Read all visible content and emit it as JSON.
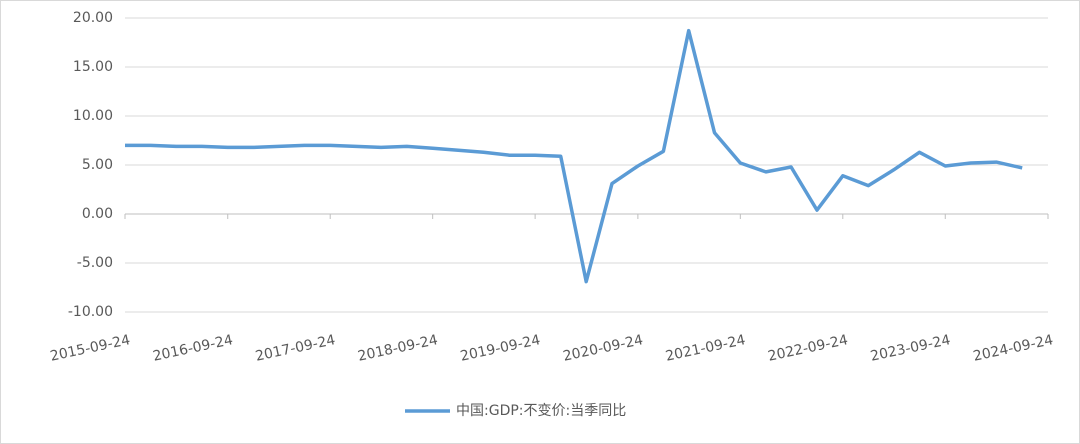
{
  "chart_data": {
    "type": "line",
    "x": [
      "2015-09",
      "2015-12",
      "2016-03",
      "2016-06",
      "2016-09",
      "2016-12",
      "2017-03",
      "2017-06",
      "2017-09",
      "2017-12",
      "2018-03",
      "2018-06",
      "2018-09",
      "2018-12",
      "2019-03",
      "2019-06",
      "2019-09",
      "2019-12",
      "2020-03",
      "2020-06",
      "2020-09",
      "2020-12",
      "2021-03",
      "2021-06",
      "2021-09",
      "2021-12",
      "2022-03",
      "2022-06",
      "2022-09",
      "2022-12",
      "2023-03",
      "2023-06",
      "2023-09",
      "2023-12",
      "2024-03",
      "2024-06"
    ],
    "series": [
      {
        "name": "中国:GDP:不变价:当季同比",
        "color": "#5b9bd5",
        "values": [
          7.0,
          7.0,
          6.9,
          6.9,
          6.8,
          6.8,
          6.9,
          7.0,
          7.0,
          6.9,
          6.8,
          6.9,
          6.7,
          6.5,
          6.3,
          6.0,
          6.0,
          5.9,
          -6.9,
          3.1,
          4.9,
          6.4,
          18.7,
          8.3,
          5.2,
          4.3,
          4.8,
          0.4,
          3.9,
          2.9,
          4.5,
          6.3,
          4.9,
          5.2,
          5.3,
          4.7
        ]
      }
    ],
    "ylim": [
      -10,
      20
    ],
    "yticks": [
      {
        "value": -10,
        "label": "-10.00"
      },
      {
        "value": -5,
        "label": "-5.00"
      },
      {
        "value": 0,
        "label": "0.00"
      },
      {
        "value": 5,
        "label": "5.00"
      },
      {
        "value": 10,
        "label": "10.00"
      },
      {
        "value": 15,
        "label": "15.00"
      },
      {
        "value": 20,
        "label": "20.00"
      }
    ],
    "xlim": [
      "2015-09-24",
      "2024-09-24"
    ],
    "xticks": [
      "2015-09-24",
      "2016-09-24",
      "2017-09-24",
      "2018-09-24",
      "2019-09-24",
      "2020-09-24",
      "2021-09-24",
      "2022-09-24",
      "2023-09-24",
      "2024-09-24"
    ],
    "grid": true,
    "legend": "bottom"
  }
}
